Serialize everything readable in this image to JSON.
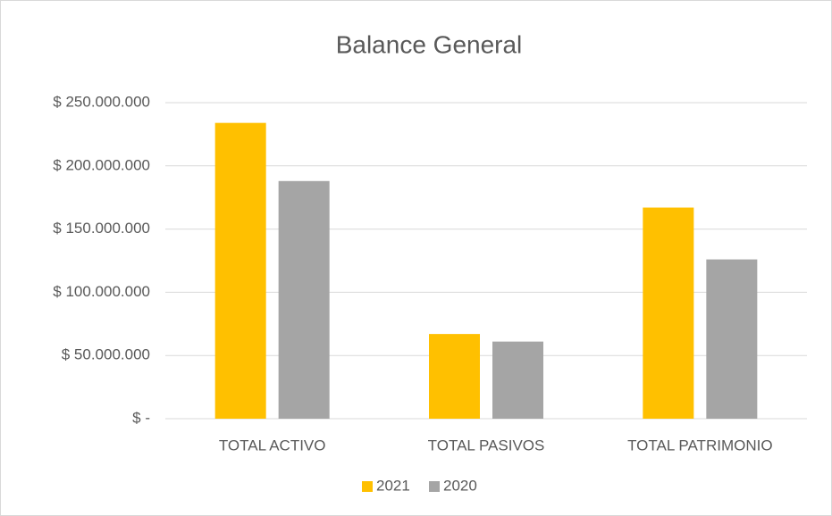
{
  "chart_data": {
    "type": "bar",
    "title": "Balance General",
    "categories": [
      "TOTAL ACTIVO",
      "TOTAL PASIVOS",
      "TOTAL PATRIMONIO"
    ],
    "series": [
      {
        "name": "2021",
        "color": "#FFC000",
        "values": [
          234000000,
          67000000,
          167000000
        ]
      },
      {
        "name": "2020",
        "color": "#A5A5A5",
        "values": [
          188000000,
          61000000,
          126000000
        ]
      }
    ],
    "ylim": [
      0,
      250000000
    ],
    "yticks": [
      {
        "value": 0,
        "label": "$ -"
      },
      {
        "value": 50000000,
        "label": "$ 50.000.000"
      },
      {
        "value": 100000000,
        "label": "$ 100.000.000"
      },
      {
        "value": 150000000,
        "label": "$ 150.000.000"
      },
      {
        "value": 200000000,
        "label": "$ 200.000.000"
      },
      {
        "value": 250000000,
        "label": "$ 250.000.000"
      }
    ],
    "grid": true,
    "legend": "bottom"
  }
}
